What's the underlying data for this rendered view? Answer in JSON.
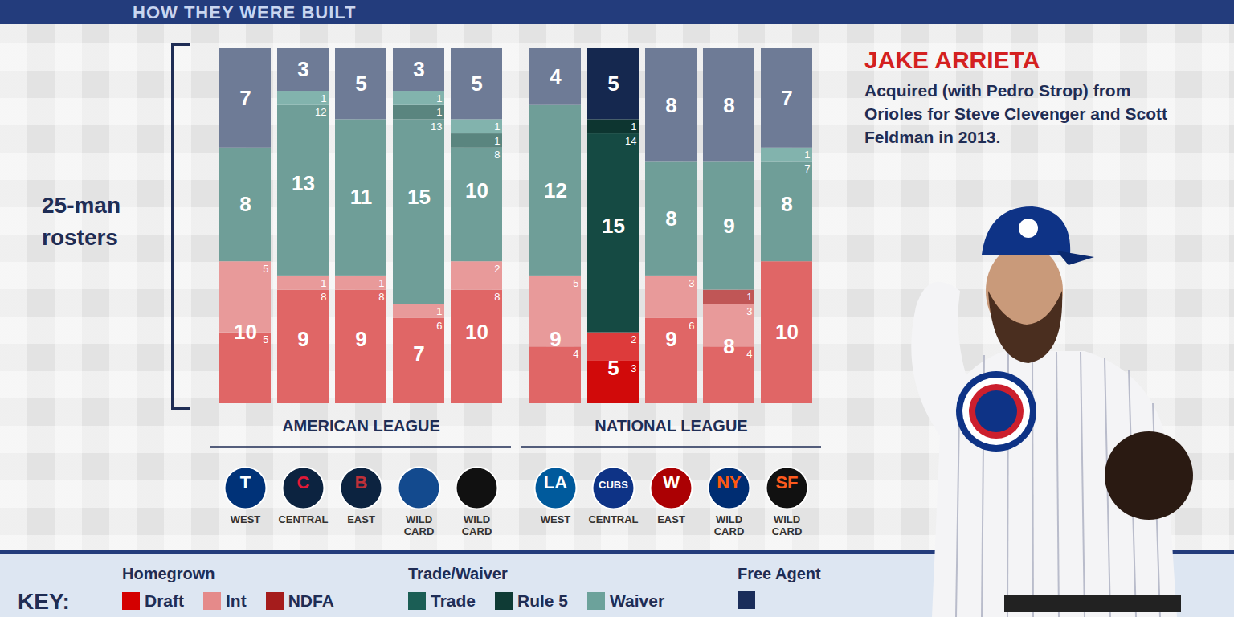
{
  "chart_data": {
    "type": "bar",
    "title": "HOW THEY WERE BUILT",
    "ylabel": "25-man rosters",
    "ylim": [
      0,
      25
    ],
    "yticks": [],
    "stacked": true,
    "data_labels": true,
    "tick_labels": "x",
    "legend": "bottom",
    "legend_title": "KEY:",
    "categories": [
      "WEST",
      "CENTRAL",
      "EAST",
      "WILD CARD",
      "WILD CARD",
      "WEST",
      "CENTRAL",
      "EAST",
      "WILD CARD",
      "WILD CARD"
    ],
    "leagues": [
      "AMERICAN LEAGUE",
      "AMERICAN LEAGUE",
      "AMERICAN LEAGUE",
      "AMERICAN LEAGUE",
      "AMERICAN LEAGUE",
      "NATIONAL LEAGUE",
      "NATIONAL LEAGUE",
      "NATIONAL LEAGUE",
      "NATIONAL LEAGUE",
      "NATIONAL LEAGUE"
    ],
    "logos": [
      {
        "text": "T",
        "color": "#003278",
        "text_color": "#ffffff"
      },
      {
        "text": "C",
        "color": "#0c2340",
        "text_color": "#e31937"
      },
      {
        "text": "B",
        "color": "#0c2340",
        "text_color": "#bd3039"
      },
      {
        "color": "#134a8e"
      },
      {
        "color": "#111111"
      },
      {
        "text": "LA",
        "color": "#005a9c",
        "text_color": "#ffffff"
      },
      {
        "text": "CUBS",
        "color": "#0e3386",
        "text_color": "#ffffff"
      },
      {
        "text": "W",
        "color": "#ab0003",
        "text_color": "#ffffff"
      },
      {
        "text": "NY",
        "color": "#002d72",
        "text_color": "#ff5910"
      },
      {
        "text": "SF",
        "color": "#111111",
        "text_color": "#fd5a1e"
      }
    ],
    "series": [
      {
        "name": "Draft",
        "color": "#d40000",
        "values": [
          5,
          8,
          8,
          6,
          8,
          4,
          3,
          6,
          4,
          10
        ],
        "colors": [
          "#e06666",
          "#e06666",
          "#e06666",
          "#e06666",
          "#e06666",
          "#e06666",
          "#d10a0a",
          "#e06666",
          "#e06666",
          "#e06666"
        ]
      },
      {
        "name": "Int",
        "color": "#e58a8a",
        "values": [
          5,
          1,
          1,
          1,
          2,
          5,
          2,
          3,
          3,
          0
        ],
        "colors": [
          "#e89a9a",
          "#e89a9a",
          "#e89a9a",
          "#e89a9a",
          "#e89a9a",
          "#e89a9a",
          "#dd3b3b",
          "#e89a9a",
          "#e89a9a",
          "#e89a9a"
        ]
      },
      {
        "name": "NDFA",
        "color": "#a51c1c",
        "values": [
          0,
          0,
          0,
          0,
          0,
          0,
          0,
          0,
          1,
          0
        ],
        "colors": [
          "#c05656",
          "#c05656",
          "#c05656",
          "#c05656",
          "#c05656",
          "#c05656",
          "#a01818",
          "#c05656",
          "#c05656",
          "#c05656"
        ]
      },
      {
        "name": "Trade",
        "color": "#1b5e55",
        "values": [
          8,
          12,
          11,
          13,
          8,
          12,
          14,
          8,
          9,
          7
        ],
        "colors": [
          "#6f9e98",
          "#6f9e98",
          "#6f9e98",
          "#6f9e98",
          "#6f9e98",
          "#6f9e98",
          "#154a43",
          "#6f9e98",
          "#6f9e98",
          "#6f9e98"
        ]
      },
      {
        "name": "Rule 5",
        "color": "#0f3b35",
        "values": [
          0,
          0,
          0,
          1,
          1,
          0,
          1,
          0,
          0,
          0
        ],
        "colors": [
          "#5a857f",
          "#5a857f",
          "#5a857f",
          "#5a857f",
          "#5a857f",
          "#5a857f",
          "#0d3530",
          "#5a857f",
          "#5a857f",
          "#5a857f"
        ]
      },
      {
        "name": "Waiver",
        "color": "#6ca29b",
        "values": [
          0,
          1,
          0,
          1,
          1,
          0,
          0,
          0,
          0,
          1
        ],
        "colors": [
          "#82b3ad",
          "#82b3ad",
          "#82b3ad",
          "#82b3ad",
          "#82b3ad",
          "#82b3ad",
          "#6ca29b",
          "#82b3ad",
          "#82b3ad",
          "#82b3ad"
        ]
      },
      {
        "name": "Free Agent",
        "color": "#1a2d5a",
        "values": [
          7,
          3,
          5,
          3,
          5,
          4,
          5,
          8,
          8,
          7
        ],
        "colors": [
          "#6e7b96",
          "#6e7b96",
          "#6e7b96",
          "#6e7b96",
          "#6e7b96",
          "#6e7b96",
          "#15284f",
          "#6e7b96",
          "#6e7b96",
          "#6e7b96"
        ]
      }
    ],
    "groups": [
      {
        "name": "Homegrown",
        "series": [
          "Draft",
          "Int",
          "NDFA"
        ],
        "totals": [
          10,
          9,
          9,
          7,
          10,
          9,
          5,
          9,
          8,
          10
        ]
      },
      {
        "name": "Trade/Waiver",
        "series": [
          "Trade",
          "Rule 5",
          "Waiver"
        ],
        "totals": [
          8,
          13,
          11,
          15,
          10,
          12,
          15,
          8,
          9,
          8
        ]
      },
      {
        "name": "Free Agent",
        "series": [
          "Free Agent"
        ],
        "totals": [
          7,
          3,
          5,
          3,
          5,
          4,
          5,
          8,
          8,
          7
        ]
      }
    ],
    "annotation": {
      "title": "JAKE ARRIETA",
      "text": "Acquired (with Pedro Strop) from Orioles for Steve Clevenger and Scott Feldman in 2013."
    }
  }
}
